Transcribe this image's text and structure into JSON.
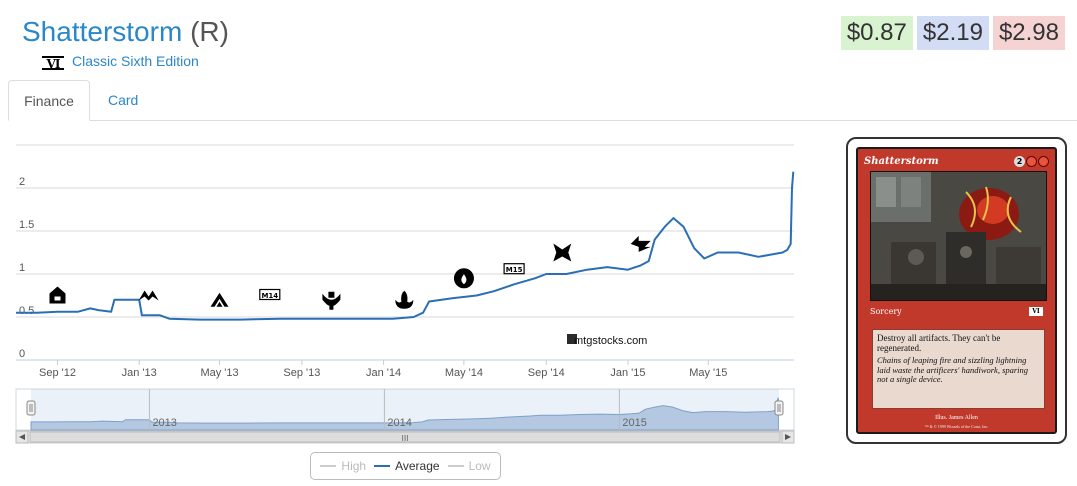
{
  "header": {
    "card_name": "Shatterstorm",
    "rarity": "(R)",
    "set_icon_text": "VI",
    "set_name": "Classic Sixth Edition"
  },
  "prices": {
    "low": "$0.87",
    "average": "$2.19",
    "high": "$2.98",
    "colors": {
      "low": "#d9f2cf",
      "average": "#d3dcf5",
      "high": "#f5d3d3"
    }
  },
  "tabs": [
    {
      "label": "Finance",
      "active": true
    },
    {
      "label": "Card",
      "active": false
    }
  ],
  "legend": {
    "high": "High",
    "average": "Average",
    "low": "Low"
  },
  "watermark": "mtgstocks.com",
  "scrollbar": {
    "grip": "III",
    "year_labels": [
      "2013",
      "2014",
      "2015"
    ]
  },
  "card": {
    "name": "Shatterstorm",
    "cost_generic": "2",
    "type_line": "Sorcery",
    "set_symbol": "VI",
    "rules_text": "Destroy all artifacts. They can't be regenerated.",
    "flavor_text": "Chains of leaping fire and sizzling lightning laid waste the artificers' handiwork, sparing not a single device.",
    "illustrator": "Illus. James Allen",
    "copyright": "™ & © 1999 Wizards of the Coast, Inc."
  },
  "chart_data": {
    "type": "line",
    "series": [
      {
        "name": "Average",
        "color": "#2a6fb5",
        "points": [
          [
            "2012-07-01",
            0.55
          ],
          [
            "2012-08-01",
            0.55
          ],
          [
            "2012-09-01",
            0.56
          ],
          [
            "2012-10-01",
            0.56
          ],
          [
            "2012-10-20",
            0.6
          ],
          [
            "2012-11-01",
            0.58
          ],
          [
            "2012-11-20",
            0.56
          ],
          [
            "2012-11-25",
            0.7
          ],
          [
            "2012-12-15",
            0.7
          ],
          [
            "2013-01-01",
            0.7
          ],
          [
            "2013-01-05",
            0.52
          ],
          [
            "2013-02-01",
            0.52
          ],
          [
            "2013-02-15",
            0.48
          ],
          [
            "2013-04-01",
            0.47
          ],
          [
            "2013-06-01",
            0.47
          ],
          [
            "2013-08-01",
            0.48
          ],
          [
            "2013-10-01",
            0.48
          ],
          [
            "2013-12-01",
            0.48
          ],
          [
            "2014-01-15",
            0.48
          ],
          [
            "2014-02-15",
            0.5
          ],
          [
            "2014-03-01",
            0.55
          ],
          [
            "2014-03-10",
            0.68
          ],
          [
            "2014-04-15",
            0.72
          ],
          [
            "2014-05-20",
            0.75
          ],
          [
            "2014-06-15",
            0.8
          ],
          [
            "2014-07-15",
            0.88
          ],
          [
            "2014-08-15",
            0.95
          ],
          [
            "2014-09-01",
            1.0
          ],
          [
            "2014-10-01",
            1.0
          ],
          [
            "2014-11-01",
            1.05
          ],
          [
            "2014-12-01",
            1.08
          ],
          [
            "2015-01-01",
            1.05
          ],
          [
            "2015-01-20",
            1.1
          ],
          [
            "2015-02-01",
            1.15
          ],
          [
            "2015-02-10",
            1.4
          ],
          [
            "2015-02-25",
            1.55
          ],
          [
            "2015-03-10",
            1.65
          ],
          [
            "2015-03-25",
            1.55
          ],
          [
            "2015-04-10",
            1.3
          ],
          [
            "2015-04-25",
            1.18
          ],
          [
            "2015-05-15",
            1.25
          ],
          [
            "2015-06-15",
            1.25
          ],
          [
            "2015-07-15",
            1.2
          ],
          [
            "2015-08-20",
            1.25
          ],
          [
            "2015-08-27",
            1.28
          ],
          [
            "2015-09-01",
            1.35
          ],
          [
            "2015-09-03",
            2.0
          ],
          [
            "2015-09-05",
            2.19
          ]
        ]
      }
    ],
    "y_ticks": [
      "0",
      "0.5",
      "1",
      "1.5",
      "2"
    ],
    "x_ticks": [
      "Sep '12",
      "Jan '13",
      "May '13",
      "Sep '13",
      "Jan '14",
      "May '14",
      "Sep '14",
      "Jan '15",
      "May '15"
    ],
    "ylim": [
      0,
      2.5
    ],
    "xlim": [
      "2012-07-01",
      "2015-09-06"
    ],
    "grid": true,
    "legend_position": "bottom",
    "set_markers": [
      {
        "date": "2012-09-01",
        "value": 0.75,
        "icon": "return-to-ravnica-icon"
      },
      {
        "date": "2013-01-15",
        "value": 0.75,
        "icon": "gatecrash-icon"
      },
      {
        "date": "2013-05-01",
        "value": 0.7,
        "icon": "dragons-maze-icon"
      },
      {
        "date": "2013-07-15",
        "value": 0.75,
        "icon": "m14-icon",
        "text": "M14"
      },
      {
        "date": "2013-10-15",
        "value": 0.7,
        "icon": "theros-icon"
      },
      {
        "date": "2014-02-01",
        "value": 0.7,
        "icon": "born-of-the-gods-icon"
      },
      {
        "date": "2014-05-01",
        "value": 0.95,
        "icon": "journey-into-nyx-icon"
      },
      {
        "date": "2014-07-15",
        "value": 1.05,
        "icon": "m15-icon",
        "text": "M15"
      },
      {
        "date": "2014-09-25",
        "value": 1.25,
        "icon": "khans-of-tarkir-icon"
      },
      {
        "date": "2015-01-20",
        "value": 1.35,
        "icon": "fate-reforged-icon"
      }
    ]
  }
}
